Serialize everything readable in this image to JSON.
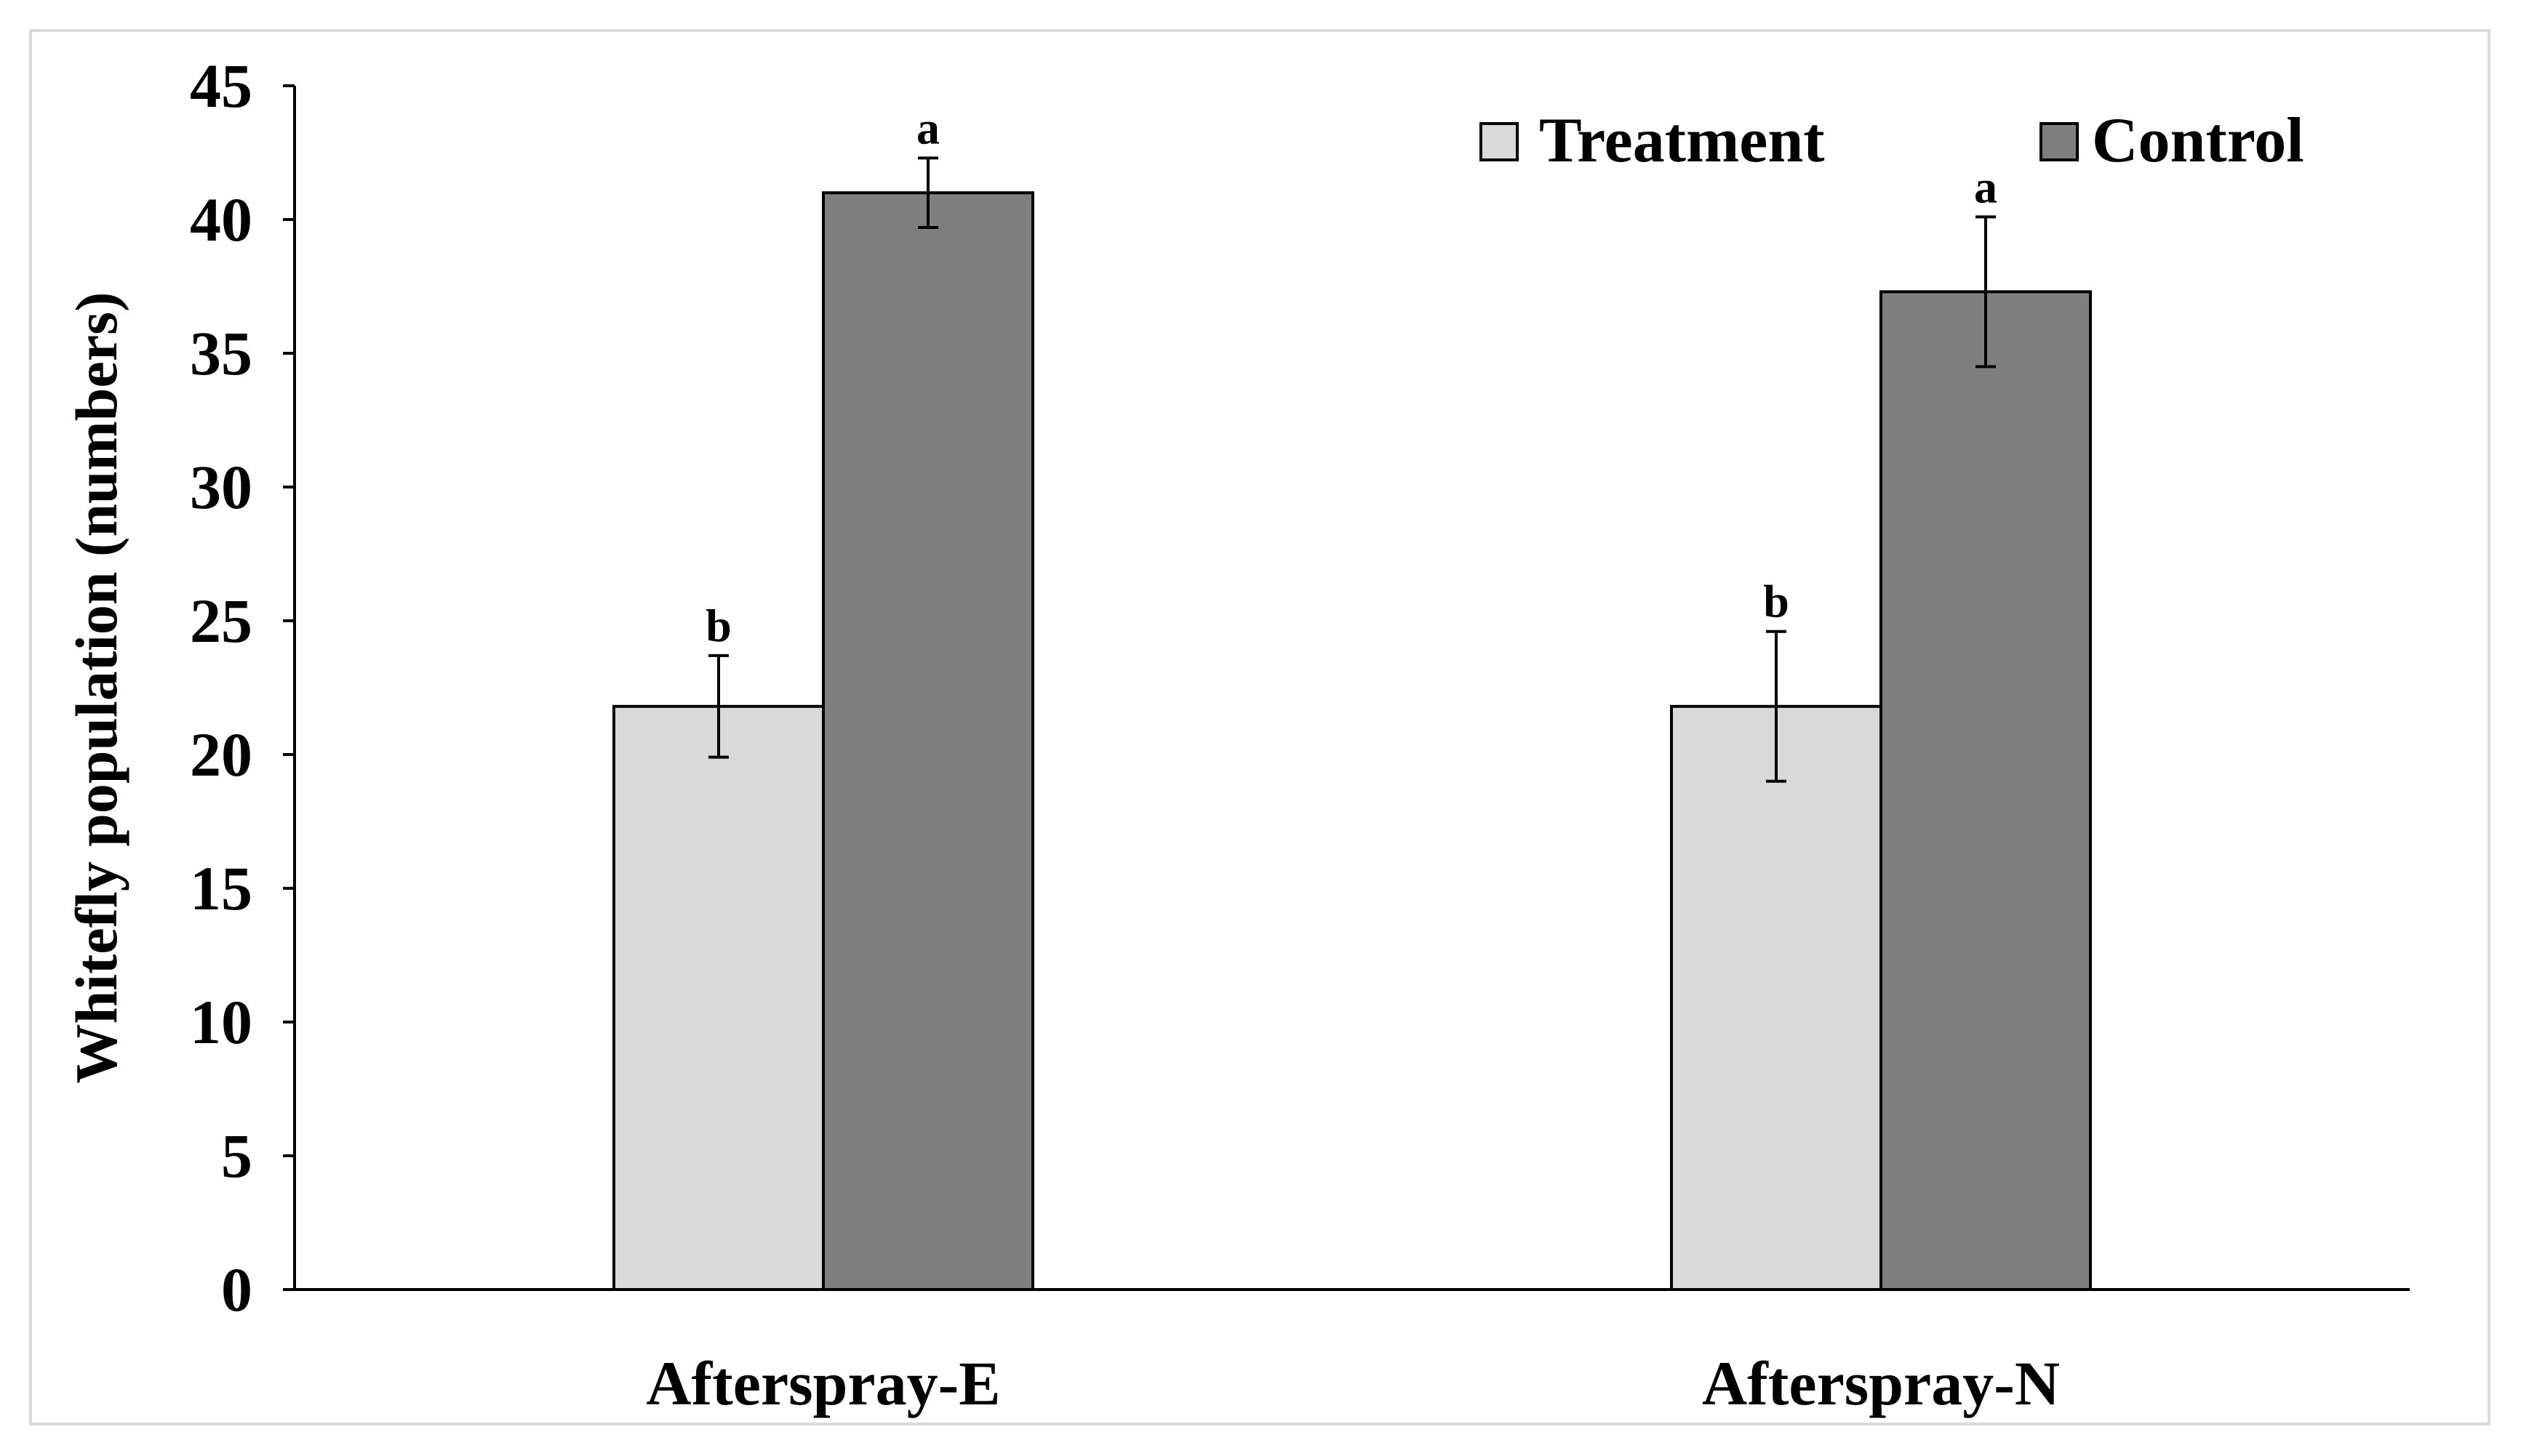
{
  "chart_data": {
    "type": "bar",
    "title": "",
    "xlabel": "",
    "ylabel": "Whitefly population (numbers)",
    "ylim": [
      0,
      45
    ],
    "yticks": [
      0,
      5,
      10,
      15,
      20,
      25,
      30,
      35,
      40,
      45
    ],
    "grid": false,
    "legend_position": "top-right",
    "categories": [
      "Afterspray-E",
      "Afterspray-N"
    ],
    "series": [
      {
        "name": "Treatment",
        "color": "#d9d9d9",
        "values": [
          21.8,
          21.8
        ],
        "errors": [
          1.9,
          2.8
        ],
        "significance": [
          "b",
          "b"
        ]
      },
      {
        "name": "Control",
        "color": "#7f7f7f",
        "values": [
          41.0,
          37.3
        ],
        "errors": [
          1.3,
          2.8
        ],
        "significance": [
          "a",
          "a"
        ]
      }
    ]
  }
}
